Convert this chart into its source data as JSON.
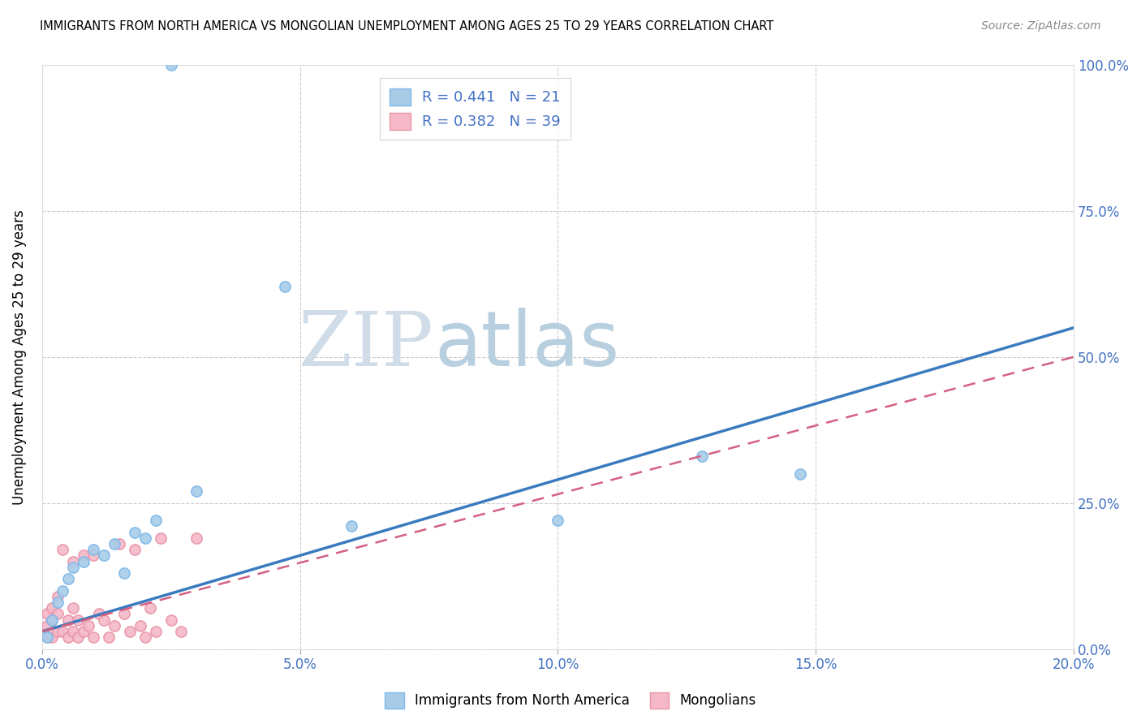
{
  "title": "IMMIGRANTS FROM NORTH AMERICA VS MONGOLIAN UNEMPLOYMENT AMONG AGES 25 TO 29 YEARS CORRELATION CHART",
  "source": "Source: ZipAtlas.com",
  "ylabel": "Unemployment Among Ages 25 to 29 years",
  "xlim": [
    0.0,
    0.2
  ],
  "ylim": [
    0.0,
    1.0
  ],
  "ytick_values": [
    0.0,
    0.25,
    0.5,
    0.75,
    1.0
  ],
  "ytick_labels": [
    "0.0%",
    "25.0%",
    "50.0%",
    "75.0%",
    "100.0%"
  ],
  "xtick_values": [
    0.0,
    0.05,
    0.1,
    0.15,
    0.2
  ],
  "xtick_labels": [
    "0.0%",
    "5.0%",
    "10.0%",
    "15.0%",
    "20.0%"
  ],
  "blue_scatter_x": [
    0.025,
    0.001,
    0.002,
    0.003,
    0.004,
    0.005,
    0.006,
    0.008,
    0.01,
    0.012,
    0.014,
    0.016,
    0.018,
    0.02,
    0.022,
    0.03,
    0.047,
    0.06,
    0.1,
    0.128,
    0.147
  ],
  "blue_scatter_y": [
    1.0,
    0.02,
    0.05,
    0.08,
    0.1,
    0.12,
    0.14,
    0.15,
    0.17,
    0.16,
    0.18,
    0.13,
    0.2,
    0.19,
    0.22,
    0.27,
    0.62,
    0.21,
    0.22,
    0.33,
    0.3
  ],
  "pink_scatter_x": [
    0.001,
    0.001,
    0.001,
    0.002,
    0.002,
    0.002,
    0.003,
    0.003,
    0.003,
    0.004,
    0.004,
    0.005,
    0.005,
    0.006,
    0.006,
    0.006,
    0.007,
    0.007,
    0.008,
    0.008,
    0.009,
    0.01,
    0.01,
    0.011,
    0.012,
    0.013,
    0.014,
    0.015,
    0.016,
    0.017,
    0.018,
    0.019,
    0.02,
    0.021,
    0.022,
    0.023,
    0.025,
    0.027,
    0.03
  ],
  "pink_scatter_y": [
    0.02,
    0.04,
    0.06,
    0.02,
    0.05,
    0.07,
    0.03,
    0.06,
    0.09,
    0.03,
    0.17,
    0.02,
    0.05,
    0.03,
    0.07,
    0.15,
    0.02,
    0.05,
    0.03,
    0.16,
    0.04,
    0.02,
    0.16,
    0.06,
    0.05,
    0.02,
    0.04,
    0.18,
    0.06,
    0.03,
    0.17,
    0.04,
    0.02,
    0.07,
    0.03,
    0.19,
    0.05,
    0.03,
    0.19
  ],
  "blue_line_x": [
    0.0,
    0.2
  ],
  "blue_line_y": [
    0.03,
    0.55
  ],
  "pink_line_x": [
    0.0,
    0.2
  ],
  "pink_line_y": [
    0.03,
    0.5
  ],
  "blue_R": "0.441",
  "blue_N": "21",
  "pink_R": "0.382",
  "pink_N": "39",
  "scatter_size": 90,
  "blue_color": "#a8cce8",
  "blue_edge_color": "#7eb8e8",
  "blue_line_color": "#3a7abf",
  "pink_color": "#f4b8c8",
  "pink_edge_color": "#e896a8",
  "pink_line_color": "#d46080",
  "grid_color": "#cccccc",
  "axis_color": "#4472c4",
  "watermark_color": "#d0dce8",
  "background_color": "#ffffff"
}
